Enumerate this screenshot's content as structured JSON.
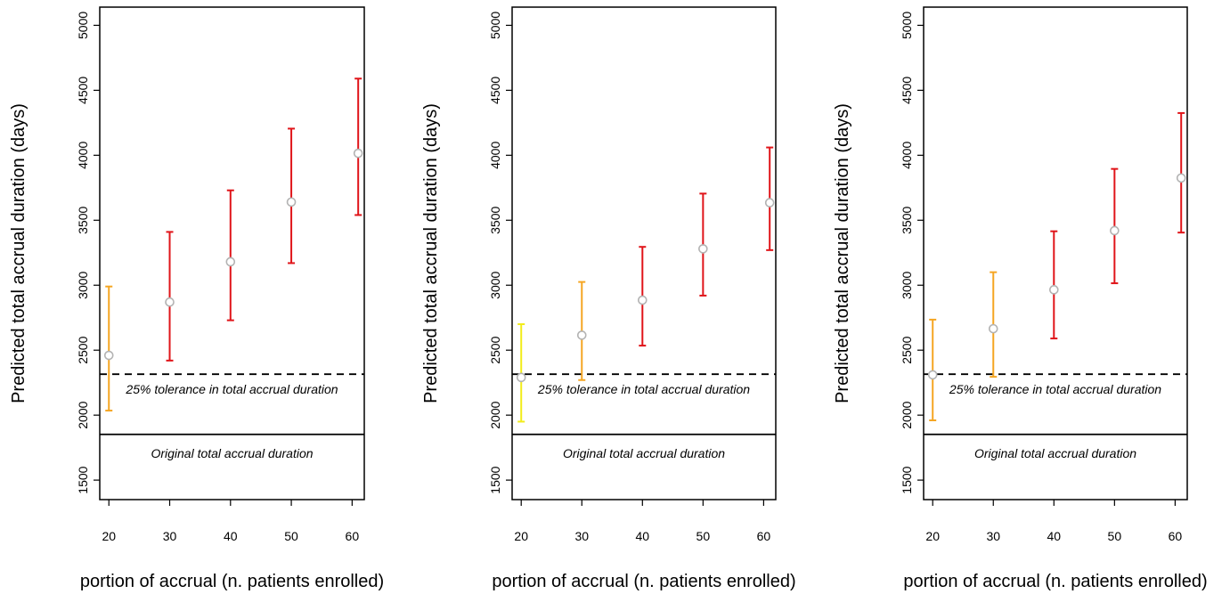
{
  "chart_data": [
    {
      "type": "scatter",
      "title": "",
      "xlabel": "portion of accrual (n. patients enrolled)",
      "ylabel": "Predicted total accrual duration (days)",
      "xticks": [
        20,
        30,
        40,
        50,
        60
      ],
      "yticks": [
        1500,
        2000,
        2500,
        3000,
        3500,
        4000,
        4500,
        5000
      ],
      "xlim": [
        18.5,
        62
      ],
      "ylim": [
        1350,
        5140
      ],
      "reference_lines": [
        {
          "label": "25% tolerance in total accrual duration",
          "y": 2315,
          "style": "dashed"
        },
        {
          "label": "Original total accrual duration",
          "y": 1852,
          "style": "solid"
        }
      ],
      "points": [
        {
          "x": 20,
          "y": 2460,
          "lower": 2035,
          "upper": 2990,
          "color": "#F5A623"
        },
        {
          "x": 30,
          "y": 2870,
          "lower": 2420,
          "upper": 3410,
          "color": "#E0151A"
        },
        {
          "x": 40,
          "y": 3180,
          "lower": 2730,
          "upper": 3730,
          "color": "#E0151A"
        },
        {
          "x": 50,
          "y": 3640,
          "lower": 3170,
          "upper": 4205,
          "color": "#E0151A"
        },
        {
          "x": 61,
          "y": 4015,
          "lower": 3540,
          "upper": 4590,
          "color": "#E0151A"
        }
      ]
    },
    {
      "type": "scatter",
      "title": "",
      "xlabel": "portion of accrual (n. patients enrolled)",
      "ylabel": "Predicted total accrual duration (days)",
      "xticks": [
        20,
        30,
        40,
        50,
        60
      ],
      "yticks": [
        1500,
        2000,
        2500,
        3000,
        3500,
        4000,
        4500,
        5000
      ],
      "xlim": [
        18.5,
        62
      ],
      "ylim": [
        1350,
        5140
      ],
      "reference_lines": [
        {
          "label": "25% tolerance in total accrual duration",
          "y": 2315,
          "style": "dashed"
        },
        {
          "label": "Original total accrual duration",
          "y": 1852,
          "style": "solid"
        }
      ],
      "points": [
        {
          "x": 20,
          "y": 2290,
          "lower": 1950,
          "upper": 2700,
          "color": "#F2EC1A"
        },
        {
          "x": 30,
          "y": 2615,
          "lower": 2270,
          "upper": 3025,
          "color": "#F5A623"
        },
        {
          "x": 40,
          "y": 2885,
          "lower": 2535,
          "upper": 3295,
          "color": "#E0151A"
        },
        {
          "x": 50,
          "y": 3280,
          "lower": 2920,
          "upper": 3705,
          "color": "#E0151A"
        },
        {
          "x": 61,
          "y": 3635,
          "lower": 3270,
          "upper": 4060,
          "color": "#E0151A"
        }
      ]
    },
    {
      "type": "scatter",
      "title": "",
      "xlabel": "portion of accrual (n. patients enrolled)",
      "ylabel": "Predicted total accrual duration (days)",
      "xticks": [
        20,
        30,
        40,
        50,
        60
      ],
      "yticks": [
        1500,
        2000,
        2500,
        3000,
        3500,
        4000,
        4500,
        5000
      ],
      "xlim": [
        18.5,
        62
      ],
      "ylim": [
        1350,
        5140
      ],
      "reference_lines": [
        {
          "label": "25% tolerance in total accrual duration",
          "y": 2315,
          "style": "dashed"
        },
        {
          "label": "Original total accrual duration",
          "y": 1852,
          "style": "solid"
        }
      ],
      "points": [
        {
          "x": 20,
          "y": 2310,
          "lower": 1960,
          "upper": 2735,
          "color": "#F5A623"
        },
        {
          "x": 30,
          "y": 2665,
          "lower": 2295,
          "upper": 3100,
          "color": "#F5A623"
        },
        {
          "x": 40,
          "y": 2965,
          "lower": 2590,
          "upper": 3415,
          "color": "#E0151A"
        },
        {
          "x": 50,
          "y": 3420,
          "lower": 3015,
          "upper": 3895,
          "color": "#E0151A"
        },
        {
          "x": 61,
          "y": 3825,
          "lower": 3405,
          "upper": 4325,
          "color": "#E0151A"
        }
      ]
    }
  ]
}
